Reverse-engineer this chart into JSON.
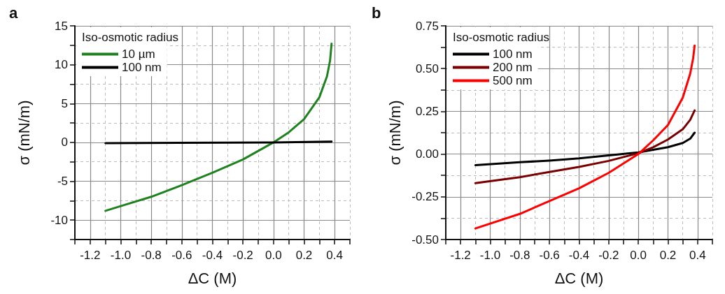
{
  "chart_data": [
    {
      "type": "line",
      "title": "a",
      "xlabel": "ΔC (M)",
      "ylabel": "σ (mN/m)",
      "legend_title": "Iso-osmotic radius",
      "legend": "top left",
      "grid": true,
      "marker": "none",
      "line_style": "solid",
      "xlim": [
        -1.3,
        0.5
      ],
      "ylim": [
        -12.5,
        15
      ],
      "xticks": [
        {
          "value": -1.3,
          "label": null
        },
        -1.2,
        {
          "value": -1.1,
          "label": null
        },
        {
          "value": -1.0,
          "label": "-1.0"
        },
        {
          "value": -0.9,
          "label": null
        },
        -0.8,
        {
          "value": -0.7,
          "label": null
        },
        -0.6,
        {
          "value": -0.5,
          "label": null
        },
        -0.4,
        {
          "value": -0.3,
          "label": null
        },
        -0.2,
        {
          "value": -0.1,
          "label": null
        },
        {
          "value": 0,
          "label": "0.0"
        },
        {
          "value": 0.1,
          "label": null
        },
        0.2,
        {
          "value": 0.3,
          "label": null
        },
        0.4,
        {
          "value": 0.5,
          "label": null
        }
      ],
      "yticks": [
        {
          "value": -12.5,
          "label": null
        },
        -10,
        {
          "value": -7.5,
          "label": null
        },
        -5,
        {
          "value": -2.5,
          "label": null
        },
        0,
        {
          "value": 2.5,
          "label": null
        },
        5,
        {
          "value": 7.5,
          "label": null
        },
        10,
        {
          "value": 12.5,
          "label": null
        },
        15
      ],
      "series": [
        {
          "name": "10 µm",
          "color": "#1f821f",
          "x": [
            -1.1,
            -1.0,
            -0.8,
            -0.6,
            -0.4,
            -0.2,
            0,
            0.1,
            0.2,
            0.3,
            0.35,
            0.37,
            0.38
          ],
          "values": [
            -8.8,
            -8.2,
            -7.0,
            -5.5,
            -3.9,
            -2.2,
            0,
            1.3,
            3.0,
            5.8,
            8.5,
            10.5,
            12.7
          ]
        },
        {
          "name": "100 nm",
          "color": "#000000",
          "x": [
            -1.1,
            0,
            0.38
          ],
          "values": [
            -0.1,
            0,
            0.1
          ]
        }
      ]
    },
    {
      "type": "line",
      "title": "b",
      "xlabel": "ΔC (M)",
      "ylabel": "σ (mN/m)",
      "legend_title": "Iso-osmotic radius",
      "legend": "top left",
      "grid": true,
      "marker": "none",
      "line_style": "solid",
      "xlim": [
        -1.3,
        0.5
      ],
      "ylim": [
        -0.5,
        0.75
      ],
      "xticks": [
        {
          "value": -1.3,
          "label": null
        },
        -1.2,
        {
          "value": -1.1,
          "label": null
        },
        {
          "value": -1.0,
          "label": "-1.0"
        },
        {
          "value": -0.9,
          "label": null
        },
        -0.8,
        {
          "value": -0.7,
          "label": null
        },
        -0.6,
        {
          "value": -0.5,
          "label": null
        },
        -0.4,
        {
          "value": -0.3,
          "label": null
        },
        -0.2,
        {
          "value": -0.1,
          "label": null
        },
        {
          "value": 0,
          "label": "0.0"
        },
        {
          "value": 0.1,
          "label": null
        },
        0.2,
        {
          "value": 0.3,
          "label": null
        },
        0.4,
        {
          "value": 0.5,
          "label": null
        }
      ],
      "yticks": [
        {
          "value": -0.5,
          "label": "-0.50"
        },
        {
          "value": -0.375,
          "label": null
        },
        -0.25,
        {
          "value": -0.125,
          "label": null
        },
        {
          "value": 0,
          "label": "0.00"
        },
        {
          "value": 0.125,
          "label": null
        },
        0.25,
        {
          "value": 0.375,
          "label": null
        },
        {
          "value": 0.5,
          "label": "0.50"
        },
        {
          "value": 0.625,
          "label": null
        },
        0.75
      ],
      "series": [
        {
          "name": "100 nm",
          "color": "#000000",
          "x": [
            -1.1,
            -0.8,
            -0.6,
            -0.4,
            -0.2,
            0,
            0.1,
            0.2,
            0.3,
            0.35,
            0.38
          ],
          "values": [
            -0.065,
            -0.048,
            -0.038,
            -0.025,
            -0.008,
            0.01,
            0.025,
            0.04,
            0.065,
            0.09,
            0.125
          ]
        },
        {
          "name": "200 nm",
          "color": "#7a0000",
          "x": [
            -1.1,
            -0.8,
            -0.6,
            -0.4,
            -0.2,
            0,
            0.1,
            0.2,
            0.3,
            0.35,
            0.38
          ],
          "values": [
            -0.17,
            -0.135,
            -0.105,
            -0.075,
            -0.04,
            0.005,
            0.04,
            0.085,
            0.145,
            0.2,
            0.255
          ]
        },
        {
          "name": "500 nm",
          "color": "#ff0000",
          "x": [
            -1.1,
            -0.8,
            -0.6,
            -0.4,
            -0.2,
            0,
            0.1,
            0.2,
            0.3,
            0.35,
            0.37,
            0.38
          ],
          "values": [
            -0.435,
            -0.35,
            -0.275,
            -0.2,
            -0.11,
            0,
            0.08,
            0.17,
            0.33,
            0.47,
            0.56,
            0.635
          ]
        }
      ]
    }
  ]
}
